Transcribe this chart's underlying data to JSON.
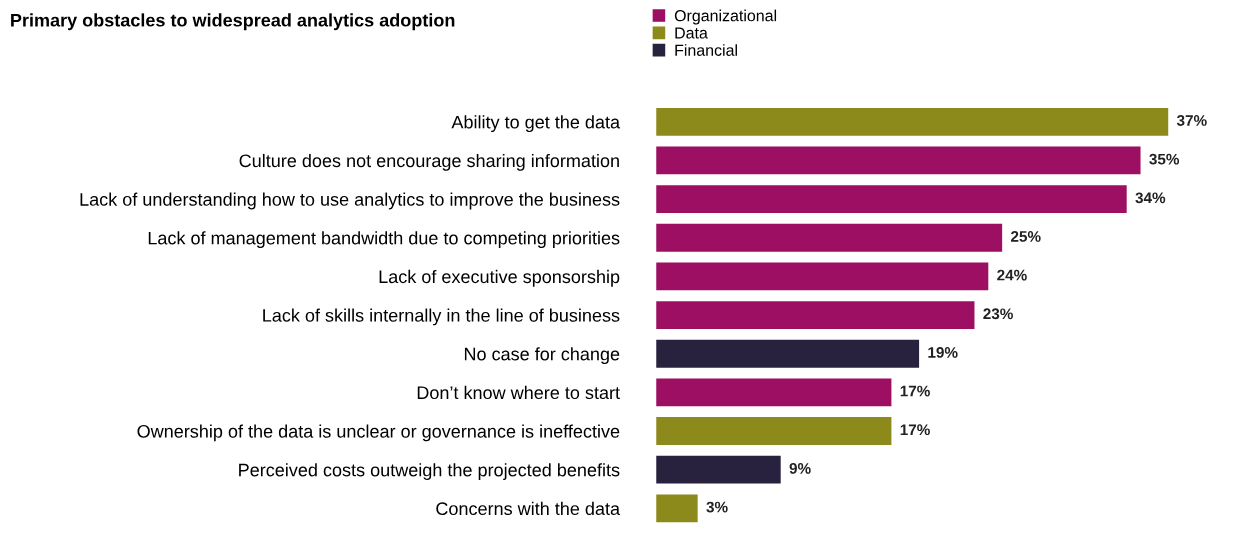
{
  "chart_data": {
    "type": "bar",
    "orientation": "horizontal",
    "title": "Primary obstacles to widespread analytics adoption",
    "categories": [
      "Ability to get the data",
      "Culture does not encourage sharing information",
      "Lack of understanding how to use analytics to improve the business",
      "Lack of management bandwidth due to competing priorities",
      "Lack of executive sponsorship",
      "Lack of skills internally in the line of business",
      "No case for change",
      "Don’t know where to start",
      "Ownership of the data is unclear or governance is ineffective",
      "Perceived costs outweigh the projected benefits",
      "Concerns with the data"
    ],
    "series": [
      {
        "name": "Organizational",
        "color": "#9c0f62",
        "values": [
          null,
          35,
          34,
          25,
          24,
          23,
          null,
          17,
          null,
          null,
          null
        ],
        "value_labels": [
          null,
          "35%",
          "34%",
          "25%",
          "24%",
          "23%",
          null,
          "17%",
          null,
          null,
          null
        ]
      },
      {
        "name": "Data",
        "color": "#8d8a1c",
        "values": [
          37,
          null,
          null,
          null,
          null,
          null,
          null,
          null,
          17,
          null,
          3
        ],
        "value_labels": [
          "37%",
          null,
          null,
          null,
          null,
          null,
          null,
          null,
          "17%",
          null,
          "3%"
        ]
      },
      {
        "name": "Financial",
        "color": "#28223f",
        "values": [
          null,
          null,
          null,
          null,
          null,
          null,
          19,
          null,
          null,
          9,
          null
        ],
        "value_labels": [
          null,
          null,
          null,
          null,
          null,
          null,
          "19%",
          null,
          null,
          "9%",
          null
        ]
      }
    ],
    "legend": "top",
    "tick_labels": "y",
    "grid": false
  }
}
